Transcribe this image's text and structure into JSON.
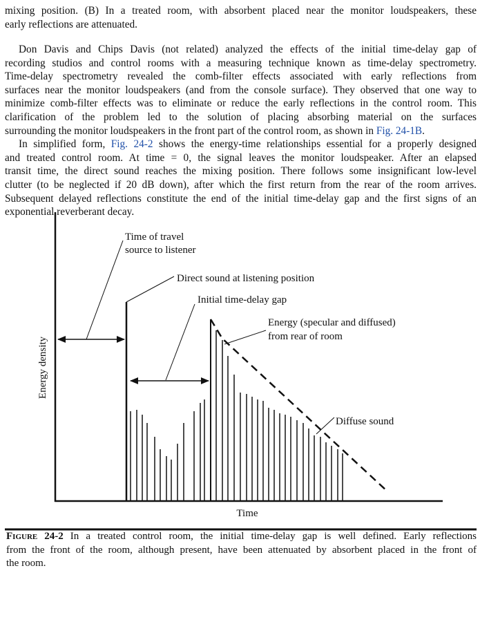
{
  "intro": {
    "lines": [
      {
        "text": "mixing position. (B) In a treated room, with absorbent placed near the monitor loudspeakers, these"
      },
      {
        "text": "early reflections are attenuated."
      }
    ]
  },
  "paragraphs": [
    {
      "lines": [
        {
          "text": "Don Davis and Chips Davis (not related) analyzed the effects of the initial time-delay gap of"
        },
        {
          "text": "recording studios and control rooms with a measuring technique known as time-delay spectrometry."
        },
        {
          "text": "Time-delay spectrometry revealed the comb-filter effects associated with early reflections from"
        },
        {
          "text": "surfaces near the monitor loudspeakers (and from the console surface). They observed that one way to"
        },
        {
          "text": "minimize comb-filter effects was to eliminate or reduce the early reflections in the control room. This"
        },
        {
          "text": "clarification of the problem led to the solution of placing absorbing material on the surfaces"
        },
        {
          "text": "surrounding the monitor loudspeakers in the front part of the control room, as shown in ",
          "link": "Fig. 24-1B",
          "after": "."
        }
      ]
    },
    {
      "lines": [
        {
          "text": "In simplified form, ",
          "link": "Fig. 24-2",
          "after": " shows the energy-time relationships essential for a properly designed"
        },
        {
          "text": "and treated control room. At time = 0, the signal leaves the monitor loudspeaker. After an elapsed"
        },
        {
          "text": "transit time, the direct sound reaches the mixing position. There follows some insignificant low-level"
        },
        {
          "text": "clutter (to be neglected if 20 dB down), after which the first return from the rear of the room arrives."
        },
        {
          "text": "Subsequent delayed reflections constitute the end of the initial time-delay gap and the first signs of an"
        },
        {
          "text": "exponential reverberant decay."
        }
      ]
    }
  ],
  "figure": {
    "y_axis_label": "Energy density",
    "x_axis_label": "Time",
    "annotations": {
      "travel": [
        "Time of travel",
        "source to listener"
      ],
      "direct": "Direct sound at listening position",
      "gap": "Initial time-delay gap",
      "rear": [
        "Energy (specular and diffused)",
        "from rear of room"
      ],
      "diffuse": "Diffuse sound"
    },
    "caption": {
      "label": "Figure 24-2",
      "lines": [
        "In a treated control room, the initial time-delay gap is well defined. Early reflections",
        "from the front of the room, although present, have been attenuated by absorbent placed in the front of",
        "the room."
      ]
    }
  }
}
